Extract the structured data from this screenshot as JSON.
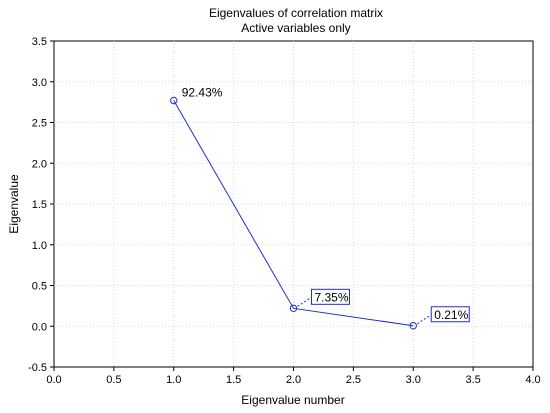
{
  "chart_data": {
    "type": "line",
    "title": "Eigenvalues of correlation matrix",
    "subtitle": "Active variables only",
    "xlabel": "Eigenvalue number",
    "ylabel": "Eigenvalue",
    "xlim": [
      0.0,
      4.0
    ],
    "ylim": [
      -0.5,
      3.5
    ],
    "x_ticks": [
      "0.0",
      "0.5",
      "1.0",
      "1.5",
      "2.0",
      "2.5",
      "3.0",
      "3.5",
      "4.0"
    ],
    "y_ticks": [
      "-0.5",
      "0.0",
      "0.5",
      "1.0",
      "1.5",
      "2.0",
      "2.5",
      "3.0",
      "3.5"
    ],
    "grid": true,
    "line_color": "#1f2fd1",
    "points": [
      {
        "x": 1,
        "y": 2.77,
        "label": "92.43%",
        "boxed": false
      },
      {
        "x": 2,
        "y": 0.22,
        "label": "7.35%",
        "boxed": true
      },
      {
        "x": 3,
        "y": 0.006,
        "label": "0.21%",
        "boxed": true
      }
    ]
  }
}
